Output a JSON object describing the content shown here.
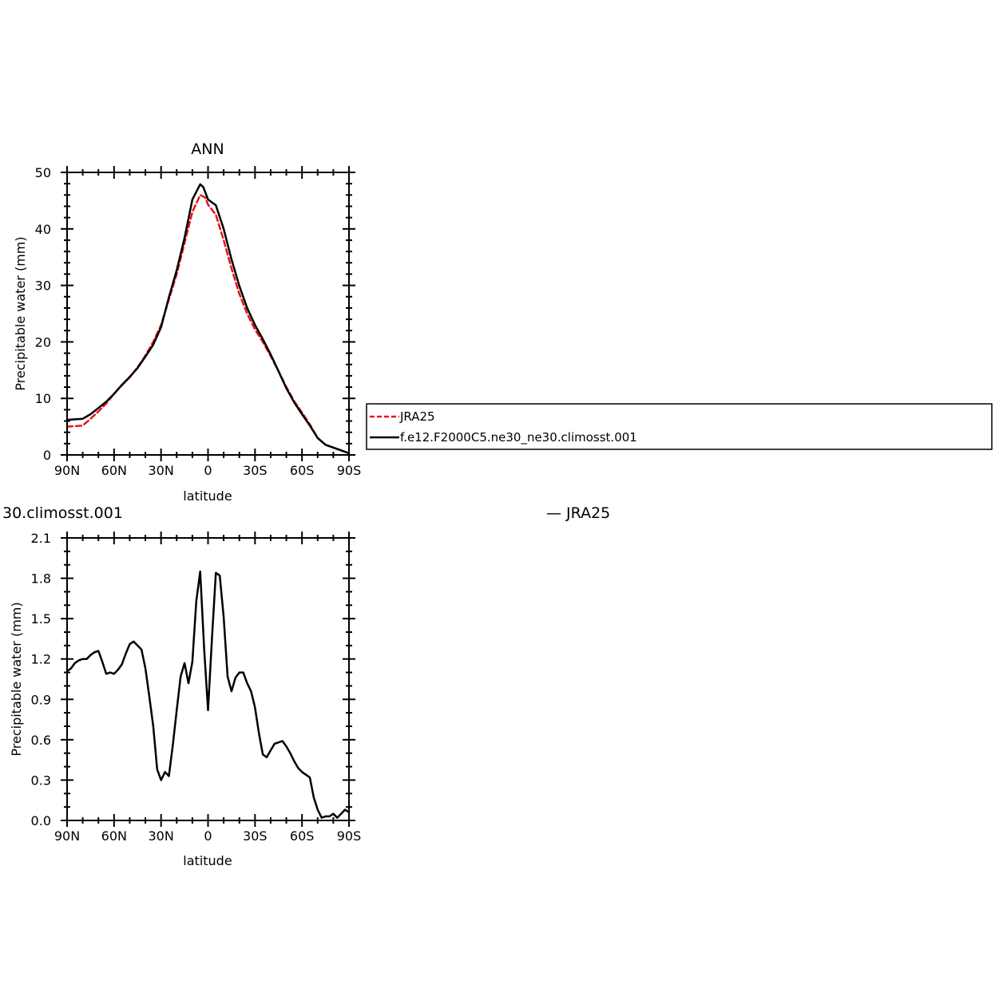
{
  "chart_data": [
    {
      "type": "line",
      "title": "ANN",
      "xlabel": "latitude",
      "ylabel": "Precipitable water (mm)",
      "xlim": [
        90,
        -90
      ],
      "ylim": [
        0,
        50
      ],
      "xticks": [
        90,
        60,
        30,
        0,
        -30,
        -60,
        -90
      ],
      "xtick_labels": [
        "90N",
        "60N",
        "30N",
        "0",
        "30S",
        "60S",
        "90S"
      ],
      "yticks": [
        0,
        10,
        20,
        30,
        40,
        50
      ],
      "ytick_labels": [
        "0",
        "10",
        "20",
        "30",
        "40",
        "50"
      ],
      "grid": false,
      "legend": [
        {
          "label": "JRA25",
          "color": "#e8141b",
          "dash": "dashed"
        },
        {
          "label": "f.e12.F2000C5.ne30_ne30.climosst.001",
          "color": "#000000",
          "dash": "solid"
        }
      ],
      "series": [
        {
          "name": "JRA25",
          "color": "#e8141b",
          "dash": "dashed",
          "x": [
            90,
            85,
            80,
            75,
            70,
            65,
            60,
            55,
            50,
            45,
            40,
            35,
            30,
            25,
            20,
            15,
            10,
            5,
            2,
            0,
            -5,
            -10,
            -15,
            -20,
            -25,
            -30,
            -35,
            -40,
            -45,
            -50,
            -55,
            -60,
            -65,
            -70,
            -75,
            -80,
            -85,
            -90
          ],
          "y": [
            5.0,
            5.1,
            5.2,
            6.4,
            7.7,
            9.1,
            10.8,
            12.3,
            13.7,
            15.5,
            17.6,
            20.0,
            23.0,
            27.5,
            32.0,
            37.5,
            43.0,
            46.0,
            45.6,
            44.3,
            42.5,
            38.0,
            33.0,
            28.5,
            25.0,
            22.2,
            20.0,
            17.5,
            14.8,
            12.0,
            9.5,
            7.5,
            5.4,
            3.0,
            1.8,
            1.3,
            0.8,
            0.3
          ]
        },
        {
          "name": "f.e12.F2000C5.ne30_ne30.climosst.001",
          "color": "#000000",
          "dash": "solid",
          "x": [
            90,
            85,
            80,
            75,
            70,
            65,
            60,
            55,
            50,
            45,
            40,
            35,
            30,
            25,
            20,
            15,
            10,
            5,
            3,
            0,
            -5,
            -10,
            -15,
            -20,
            -25,
            -30,
            -35,
            -40,
            -45,
            -50,
            -55,
            -60,
            -65,
            -70,
            -75,
            -80,
            -85,
            -90
          ],
          "y": [
            6.2,
            6.3,
            6.4,
            7.2,
            8.3,
            9.4,
            10.8,
            12.4,
            13.8,
            15.4,
            17.4,
            19.5,
            22.6,
            27.9,
            32.7,
            38.4,
            45.2,
            47.9,
            47.4,
            45.2,
            44.2,
            40.0,
            34.6,
            29.9,
            26.0,
            23.0,
            20.5,
            17.8,
            14.8,
            11.8,
            9.3,
            7.2,
            5.2,
            3.0,
            1.8,
            1.3,
            0.8,
            0.3
          ]
        }
      ]
    },
    {
      "type": "line",
      "title": "30.climosst.001",
      "title_right": "— JRA25",
      "xlabel": "latitude",
      "ylabel": "Precipitable water (mm)",
      "xlim": [
        90,
        -90
      ],
      "ylim": [
        0.0,
        2.1
      ],
      "xticks": [
        90,
        60,
        30,
        0,
        -30,
        -60,
        -90
      ],
      "xtick_labels": [
        "90N",
        "60N",
        "30N",
        "0",
        "30S",
        "60S",
        "90S"
      ],
      "yticks": [
        0.0,
        0.3,
        0.6,
        0.9,
        1.2,
        1.5,
        1.8,
        2.1
      ],
      "ytick_labels": [
        "0.0",
        "0.3",
        "0.6",
        "0.9",
        "1.2",
        "1.5",
        "1.8",
        "2.1"
      ],
      "grid": false,
      "series": [
        {
          "color": "#000000",
          "dash": "solid",
          "x": [
            90,
            87.5,
            85,
            82.5,
            80,
            77.5,
            75,
            72.5,
            70,
            67.5,
            65,
            62.5,
            60,
            57.5,
            55,
            52.5,
            50,
            47.5,
            45,
            42.5,
            40,
            37.5,
            35,
            32.5,
            30,
            27.5,
            25,
            22.5,
            20,
            17.5,
            15,
            12.5,
            10,
            7.5,
            5,
            2.5,
            0,
            -2.5,
            -5,
            -7.5,
            -10,
            -12.5,
            -15,
            -17.5,
            -20,
            -22.5,
            -25,
            -27.5,
            -30,
            -32.5,
            -35,
            -37.5,
            -40,
            -42.5,
            -45,
            -47.5,
            -50,
            -52.5,
            -55,
            -57.5,
            -60,
            -62.5,
            -65,
            -67.5,
            -70,
            -72.5,
            -75,
            -77.5,
            -80,
            -82.5,
            -85,
            -87.5,
            -90
          ],
          "y": [
            1.11,
            1.13,
            1.17,
            1.19,
            1.2,
            1.2,
            1.23,
            1.25,
            1.26,
            1.18,
            1.09,
            1.1,
            1.09,
            1.12,
            1.16,
            1.24,
            1.31,
            1.33,
            1.3,
            1.27,
            1.13,
            0.92,
            0.7,
            0.38,
            0.3,
            0.36,
            0.33,
            0.56,
            0.82,
            1.07,
            1.17,
            1.02,
            1.18,
            1.63,
            1.85,
            1.28,
            0.82,
            1.35,
            1.84,
            1.82,
            1.51,
            1.07,
            0.96,
            1.06,
            1.1,
            1.1,
            1.02,
            0.96,
            0.84,
            0.65,
            0.49,
            0.47,
            0.52,
            0.57,
            0.58,
            0.59,
            0.55,
            0.5,
            0.44,
            0.39,
            0.36,
            0.34,
            0.32,
            0.17,
            0.08,
            0.02,
            0.03,
            0.03,
            0.05,
            0.02,
            0.05,
            0.08,
            0.06
          ]
        }
      ]
    }
  ]
}
